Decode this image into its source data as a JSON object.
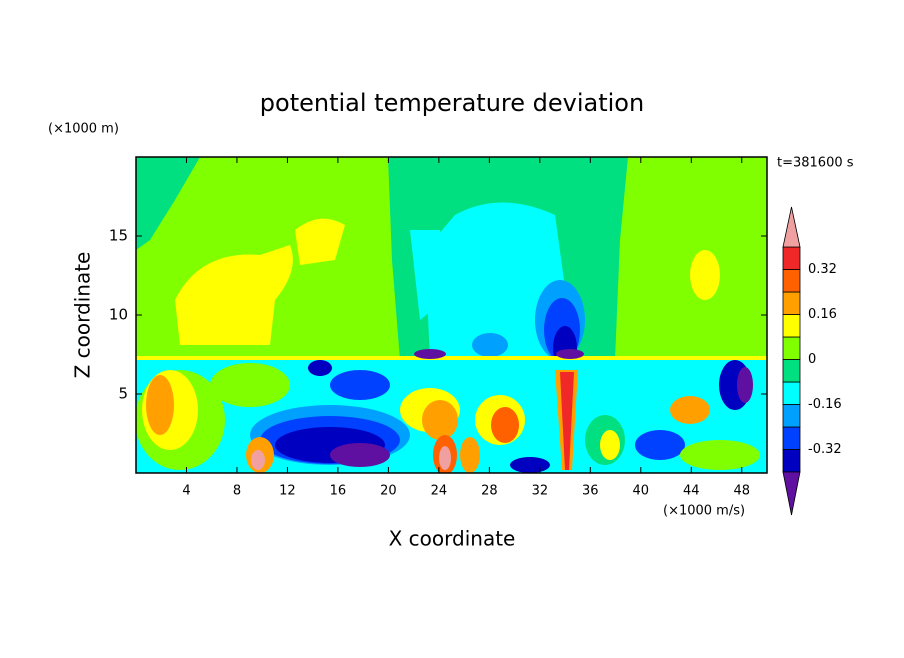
{
  "chart_data": {
    "type": "contour",
    "title": "potential temperature deviation",
    "time_label": "t=381600 s",
    "x_label": "X coordinate",
    "y_label": "Z coordinate",
    "x_unit": "(×1000 m/s)",
    "y_unit": "(×1000 m)",
    "xlim": [
      0,
      50
    ],
    "ylim": [
      0,
      20
    ],
    "xticks": [
      4,
      8,
      12,
      16,
      20,
      24,
      28,
      32,
      36,
      40,
      44,
      48
    ],
    "yticks": [
      5,
      10,
      15
    ],
    "colorbar": {
      "levels": [
        -0.4,
        -0.32,
        -0.24,
        -0.16,
        -0.08,
        0,
        0.08,
        0.16,
        0.24,
        0.32,
        0.4
      ],
      "colors": [
        "#0000c0",
        "#0040ff",
        "#00a0ff",
        "#00ffff",
        "#00e080",
        "#80ff00",
        "#ffff00",
        "#ffa000",
        "#ff6000",
        "#f02828"
      ],
      "under_color": "#6010a0",
      "over_color": "#f0a0a0",
      "ticks": [
        0.32,
        0.16,
        0,
        -0.16,
        -0.32
      ]
    }
  }
}
